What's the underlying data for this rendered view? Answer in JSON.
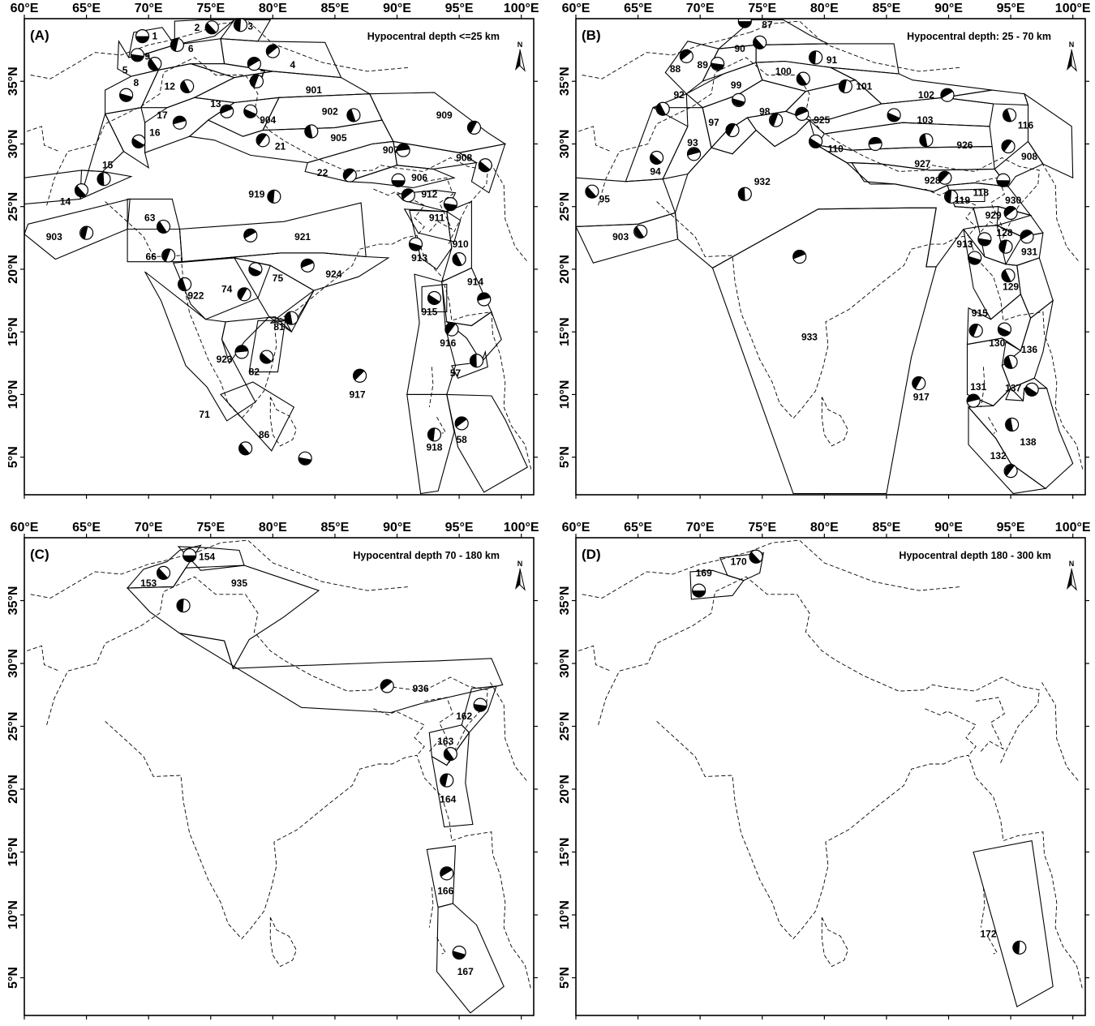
{
  "figure": {
    "panels": [
      {
        "id": "A",
        "label": "(A)",
        "title": "Hypocentral depth <=25 km",
        "north_label": "N",
        "x_ticks": [
          "60°E",
          "65°E",
          "70°E",
          "75°E",
          "80°E",
          "85°E",
          "90°E",
          "95°E",
          "100°E"
        ],
        "y_ticks": [
          "35°N",
          "30°N",
          "25°N",
          "20°N",
          "15°N",
          "10°N",
          "5°N"
        ],
        "zones": [
          {
            "label": "1",
            "lon": 70.5,
            "lat": 38.6,
            "mech_lon": 69.5,
            "mech_lat": 38.6
          },
          {
            "label": "2",
            "lon": 73.9,
            "lat": 39.3,
            "mech_lon": 75.1,
            "mech_lat": 39.3
          },
          {
            "label": "3",
            "lon": 78.2,
            "lat": 39.4,
            "mech_lon": 77.4,
            "mech_lat": 39.5
          },
          {
            "label": "4",
            "lon": 81.6,
            "lat": 36.3,
            "mech_lon": 80.0,
            "mech_lat": 37.4
          },
          {
            "label": "5",
            "lon": 68.1,
            "lat": 35.9,
            "mech_lon": 69.1,
            "mech_lat": 37.1
          },
          {
            "label": "9",
            "lon": 69.9,
            "lat": 37.0,
            "mech_lon": 70.5,
            "mech_lat": 36.4
          },
          {
            "label": "6",
            "lon": 73.4,
            "lat": 37.6,
            "mech_lon": 72.3,
            "mech_lat": 37.9
          },
          {
            "label": "7",
            "lon": 79.2,
            "lat": 35.6,
            "mech_lon": 78.5,
            "mech_lat": 36.4
          },
          {
            "label": "8",
            "lon": 69.0,
            "lat": 34.9,
            "mech_lon": 68.2,
            "mech_lat": 33.9
          },
          {
            "label": "12",
            "lon": 71.7,
            "lat": 34.6,
            "mech_lon": 73.1,
            "mech_lat": 34.6
          },
          {
            "label": "901",
            "lon": 83.3,
            "lat": 34.3,
            "mech_lon": 78.7,
            "mech_lat": 35.0
          },
          {
            "label": "13",
            "lon": 75.4,
            "lat": 33.2,
            "mech_lon": 76.3,
            "mech_lat": 32.6
          },
          {
            "label": "904",
            "lon": 79.6,
            "lat": 31.9,
            "mech_lon": 78.2,
            "mech_lat": 32.6
          },
          {
            "label": "902",
            "lon": 84.6,
            "lat": 32.6,
            "mech_lon": 86.5,
            "mech_lat": 32.3
          },
          {
            "label": "909",
            "lon": 93.8,
            "lat": 32.3,
            "mech_lon": 96.2,
            "mech_lat": 31.3
          },
          {
            "label": "17",
            "lon": 71.1,
            "lat": 32.3,
            "mech_lon": 72.5,
            "mech_lat": 31.7
          },
          {
            "label": "16",
            "lon": 70.5,
            "lat": 30.9,
            "mech_lon": 69.2,
            "mech_lat": 30.2
          },
          {
            "label": "905",
            "lon": 85.3,
            "lat": 30.5,
            "mech_lon": 83.1,
            "mech_lat": 31.0
          },
          {
            "label": "21",
            "lon": 80.6,
            "lat": 29.8,
            "mech_lon": 79.2,
            "mech_lat": 30.3
          },
          {
            "label": "907",
            "lon": 89.5,
            "lat": 29.5,
            "mech_lon": 90.5,
            "mech_lat": 29.5
          },
          {
            "label": "908",
            "lon": 95.4,
            "lat": 28.9,
            "mech_lon": 97.1,
            "mech_lat": 28.3
          },
          {
            "label": "15",
            "lon": 66.7,
            "lat": 28.3,
            "mech_lon": 66.4,
            "mech_lat": 27.2
          },
          {
            "label": "22",
            "lon": 84.0,
            "lat": 27.7,
            "mech_lon": 86.2,
            "mech_lat": 27.5
          },
          {
            "label": "906",
            "lon": 91.8,
            "lat": 27.3,
            "mech_lon": 90.1,
            "mech_lat": 27.1
          },
          {
            "label": "14",
            "lon": 63.3,
            "lat": 25.4,
            "mech_lon": 64.6,
            "mech_lat": 26.3
          },
          {
            "label": "919",
            "lon": 78.7,
            "lat": 26.0,
            "mech_lon": 80.1,
            "mech_lat": 25.8
          },
          {
            "label": "912",
            "lon": 92.6,
            "lat": 26.0,
            "mech_lon": 90.9,
            "mech_lat": 25.9
          },
          {
            "label": "911",
            "lon": 93.2,
            "lat": 24.1,
            "mech_lon": 94.3,
            "mech_lat": 25.2
          },
          {
            "label": "63",
            "lon": 70.1,
            "lat": 24.1,
            "mech_lon": 71.2,
            "mech_lat": 23.4
          },
          {
            "label": "903",
            "lon": 62.4,
            "lat": 22.6,
            "mech_lon": 65.0,
            "mech_lat": 22.9
          },
          {
            "label": "921",
            "lon": 82.4,
            "lat": 22.6,
            "mech_lon": 78.2,
            "mech_lat": 22.7
          },
          {
            "label": "913",
            "lon": 91.8,
            "lat": 20.9,
            "mech_lon": 91.5,
            "mech_lat": 22.0
          },
          {
            "label": "910",
            "lon": 95.1,
            "lat": 22.0,
            "mech_lon": 95.0,
            "mech_lat": 20.8
          },
          {
            "label": "66",
            "lon": 70.2,
            "lat": 21.0,
            "mech_lon": 71.6,
            "mech_lat": 21.1
          },
          {
            "label": "924",
            "lon": 84.9,
            "lat": 19.6,
            "mech_lon": 82.8,
            "mech_lat": 20.3
          },
          {
            "label": "75",
            "lon": 80.4,
            "lat": 19.3,
            "mech_lon": 78.6,
            "mech_lat": 20.0
          },
          {
            "label": "922",
            "lon": 73.8,
            "lat": 17.9,
            "mech_lon": 72.9,
            "mech_lat": 18.8
          },
          {
            "label": "74",
            "lon": 76.3,
            "lat": 18.4,
            "mech_lon": 77.7,
            "mech_lat": 18.0
          },
          {
            "label": "914",
            "lon": 96.3,
            "lat": 19.0,
            "mech_lon": 97.0,
            "mech_lat": 17.6
          },
          {
            "label": "915",
            "lon": 92.6,
            "lat": 16.6,
            "mech_lon": 93.0,
            "mech_lat": 17.7
          },
          {
            "label": "81",
            "lon": 80.5,
            "lat": 15.4,
            "mech_lon": 81.5,
            "mech_lat": 16.1
          },
          {
            "label": "916",
            "lon": 94.1,
            "lat": 14.1,
            "mech_lon": 94.4,
            "mech_lat": 15.2
          },
          {
            "label": "923",
            "lon": 76.1,
            "lat": 12.8,
            "mech_lon": 77.5,
            "mech_lat": 13.4
          },
          {
            "label": "82",
            "lon": 78.5,
            "lat": 11.8,
            "mech_lon": 79.5,
            "mech_lat": 13.0
          },
          {
            "label": "57",
            "lon": 94.7,
            "lat": 11.7,
            "mech_lon": 96.4,
            "mech_lat": 12.7
          },
          {
            "label": "917",
            "lon": 86.8,
            "lat": 10.0,
            "mech_lon": 87.0,
            "mech_lat": 11.5
          },
          {
            "label": "71",
            "lon": 74.5,
            "lat": 8.4,
            "mech_lon": null,
            "mech_lat": null
          },
          {
            "label": "86",
            "lon": 79.3,
            "lat": 6.8,
            "mech_lon": 77.8,
            "mech_lat": 5.7
          },
          {
            "label": "918",
            "lon": 93.0,
            "lat": 5.8,
            "mech_lon": 93.0,
            "mech_lat": 6.8
          },
          {
            "label": "58",
            "lon": 95.2,
            "lat": 6.4,
            "mech_lon": 95.2,
            "mech_lat": 7.7
          },
          {
            "label": "",
            "lon": null,
            "lat": null,
            "mech_lon": 82.6,
            "mech_lat": 4.9
          }
        ]
      },
      {
        "id": "B",
        "label": "(B)",
        "title": "Hypocentral depth: 25 - 70 km",
        "north_label": "N",
        "x_ticks": [
          "60°E",
          "65°E",
          "70°E",
          "75°E",
          "80°E",
          "85°E",
          "90°E",
          "95°E",
          "100°E"
        ],
        "y_ticks": [
          "35°N",
          "30°N",
          "25°N",
          "20°N",
          "15°N",
          "10°N",
          "5°N"
        ],
        "zones": [
          {
            "label": "87",
            "lon": 75.4,
            "lat": 39.5,
            "mech_lon": 73.6,
            "mech_lat": 39.8
          },
          {
            "label": "90",
            "lon": 73.2,
            "lat": 37.6,
            "mech_lon": 74.8,
            "mech_lat": 38.1
          },
          {
            "label": "91",
            "lon": 80.6,
            "lat": 36.7,
            "mech_lon": 79.3,
            "mech_lat": 36.9
          },
          {
            "label": "88",
            "lon": 68.0,
            "lat": 36.0,
            "mech_lon": 68.9,
            "mech_lat": 37.0
          },
          {
            "label": "89",
            "lon": 70.2,
            "lat": 36.3,
            "mech_lon": 71.4,
            "mech_lat": 36.4
          },
          {
            "label": "100",
            "lon": 76.7,
            "lat": 35.8,
            "mech_lon": 78.3,
            "mech_lat": 35.2
          },
          {
            "label": "101",
            "lon": 83.2,
            "lat": 34.6,
            "mech_lon": 81.7,
            "mech_lat": 34.6
          },
          {
            "label": "102",
            "lon": 88.2,
            "lat": 33.9,
            "mech_lon": 89.9,
            "mech_lat": 33.9
          },
          {
            "label": "99",
            "lon": 72.9,
            "lat": 34.7,
            "mech_lon": 73.1,
            "mech_lat": 33.5
          },
          {
            "label": "92",
            "lon": 68.3,
            "lat": 33.9,
            "mech_lon": 67.0,
            "mech_lat": 32.8
          },
          {
            "label": "98",
            "lon": 75.2,
            "lat": 32.6,
            "mech_lon": 76.1,
            "mech_lat": 31.9
          },
          {
            "label": "925",
            "lon": 79.8,
            "lat": 31.9,
            "mech_lon": 78.2,
            "mech_lat": 32.4
          },
          {
            "label": "103",
            "lon": 88.1,
            "lat": 31.9,
            "mech_lon": 85.6,
            "mech_lat": 32.3
          },
          {
            "label": "116",
            "lon": 96.2,
            "lat": 31.5,
            "mech_lon": 94.9,
            "mech_lat": 32.3
          },
          {
            "label": "97",
            "lon": 71.1,
            "lat": 31.7,
            "mech_lon": 72.6,
            "mech_lat": 31.1
          },
          {
            "label": "93",
            "lon": 69.4,
            "lat": 30.1,
            "mech_lon": 69.5,
            "mech_lat": 29.2
          },
          {
            "label": "110",
            "lon": 80.9,
            "lat": 29.6,
            "mech_lon": 79.3,
            "mech_lat": 30.2
          },
          {
            "label": "926",
            "lon": 91.3,
            "lat": 29.9,
            "mech_lon": 88.2,
            "mech_lat": 30.3
          },
          {
            "label": "908",
            "lon": 96.5,
            "lat": 29.0,
            "mech_lon": 94.8,
            "mech_lat": 29.8
          },
          {
            "label": "927",
            "lon": 87.9,
            "lat": 28.4,
            "mech_lon": 84.1,
            "mech_lat": 30.0
          },
          {
            "label": "94",
            "lon": 66.4,
            "lat": 27.8,
            "mech_lon": 66.5,
            "mech_lat": 28.9
          },
          {
            "label": "932",
            "lon": 75.0,
            "lat": 27.0,
            "mech_lon": 73.6,
            "mech_lat": 26.0
          },
          {
            "label": "928",
            "lon": 88.7,
            "lat": 27.1,
            "mech_lon": 89.7,
            "mech_lat": 27.3
          },
          {
            "label": "118",
            "lon": 92.6,
            "lat": 26.1,
            "mech_lon": 94.4,
            "mech_lat": 27.1
          },
          {
            "label": "95",
            "lon": 62.3,
            "lat": 25.6,
            "mech_lon": 61.3,
            "mech_lat": 26.2
          },
          {
            "label": "119",
            "lon": 91.1,
            "lat": 25.5,
            "mech_lon": 90.2,
            "mech_lat": 25.8
          },
          {
            "label": "930",
            "lon": 95.2,
            "lat": 25.5,
            "mech_lon": 95.0,
            "mech_lat": 24.5
          },
          {
            "label": "929",
            "lon": 93.6,
            "lat": 24.3,
            "mech_lon": 92.9,
            "mech_lat": 22.4
          },
          {
            "label": "903",
            "lon": 63.6,
            "lat": 22.6,
            "mech_lon": 65.2,
            "mech_lat": 23.0
          },
          {
            "label": "128",
            "lon": 94.5,
            "lat": 22.9,
            "mech_lon": 94.6,
            "mech_lat": 21.8
          },
          {
            "label": "931",
            "lon": 96.5,
            "lat": 21.4,
            "mech_lon": 96.3,
            "mech_lat": 22.6
          },
          {
            "label": "913",
            "lon": 91.3,
            "lat": 22.0,
            "mech_lon": 92.1,
            "mech_lat": 20.9
          },
          {
            "label": "129",
            "lon": 95.0,
            "lat": 18.6,
            "mech_lon": 94.8,
            "mech_lat": 19.5
          },
          {
            "label": "915",
            "lon": 92.5,
            "lat": 16.5,
            "mech_lon": 92.2,
            "mech_lat": 15.1
          },
          {
            "label": "933",
            "lon": 78.8,
            "lat": 14.6,
            "mech_lon": 78.0,
            "mech_lat": 21.0
          },
          {
            "label": "130",
            "lon": 93.9,
            "lat": 14.1,
            "mech_lon": 94.5,
            "mech_lat": 15.2
          },
          {
            "label": "136",
            "lon": 96.5,
            "lat": 13.6,
            "mech_lon": 95.0,
            "mech_lat": 12.6
          },
          {
            "label": "917",
            "lon": 87.8,
            "lat": 9.8,
            "mech_lon": 87.6,
            "mech_lat": 10.9
          },
          {
            "label": "131",
            "lon": 92.4,
            "lat": 10.6,
            "mech_lon": 92.0,
            "mech_lat": 9.5
          },
          {
            "label": "137",
            "lon": 95.2,
            "lat": 10.5,
            "mech_lon": 96.7,
            "mech_lat": 10.4
          },
          {
            "label": "138",
            "lon": 96.4,
            "lat": 6.2,
            "mech_lon": 95.1,
            "mech_lat": 7.6
          },
          {
            "label": "132",
            "lon": 94.0,
            "lat": 5.1,
            "mech_lon": 95.0,
            "mech_lat": 3.9
          }
        ]
      },
      {
        "id": "C",
        "label": "(C)",
        "title": "Hypocentral depth 70 - 180 km",
        "north_label": "N",
        "x_ticks": [
          "60°E",
          "65°E",
          "70°E",
          "75°E",
          "80°E",
          "85°E",
          "90°E",
          "95°E",
          "100°E"
        ],
        "y_ticks": [
          "35°N",
          "30°N",
          "25°N",
          "20°N",
          "15°N",
          "10°N",
          "5°N"
        ],
        "zones": [
          {
            "label": "154",
            "lon": 74.7,
            "lat": 38.5,
            "mech_lon": 73.3,
            "mech_lat": 38.6
          },
          {
            "label": "153",
            "lon": 70.0,
            "lat": 36.4,
            "mech_lon": 71.2,
            "mech_lat": 37.2
          },
          {
            "label": "935",
            "lon": 77.3,
            "lat": 36.4,
            "mech_lon": 72.8,
            "mech_lat": 34.6
          },
          {
            "label": "936",
            "lon": 91.9,
            "lat": 28.0,
            "mech_lon": 89.2,
            "mech_lat": 28.2
          },
          {
            "label": "162",
            "lon": 95.4,
            "lat": 25.8,
            "mech_lon": 96.7,
            "mech_lat": 26.7
          },
          {
            "label": "163",
            "lon": 93.9,
            "lat": 23.8,
            "mech_lon": 94.3,
            "mech_lat": 22.8
          },
          {
            "label": "164",
            "lon": 94.1,
            "lat": 19.2,
            "mech_lon": 94.0,
            "mech_lat": 20.7
          },
          {
            "label": "166",
            "lon": 93.9,
            "lat": 11.9,
            "mech_lon": 94.0,
            "mech_lat": 13.3
          },
          {
            "label": "167",
            "lon": 95.5,
            "lat": 5.5,
            "mech_lon": 95.0,
            "mech_lat": 7.0
          }
        ]
      },
      {
        "id": "D",
        "label": "(D)",
        "title": "Hypocentral depth 180 - 300 km",
        "north_label": "N",
        "x_ticks": [
          "60°E",
          "65°E",
          "70°E",
          "75°E",
          "80°E",
          "85°E",
          "90°E",
          "95°E",
          "100°E"
        ],
        "y_ticks": [
          "35°N",
          "30°N",
          "25°N",
          "20°N",
          "15°N",
          "10°N",
          "5°N"
        ],
        "zones": [
          {
            "label": "169",
            "lon": 70.3,
            "lat": 37.2,
            "mech_lon": 69.9,
            "mech_lat": 35.8
          },
          {
            "label": "170",
            "lon": 73.1,
            "lat": 38.1,
            "mech_lon": 74.5,
            "mech_lat": 38.5
          },
          {
            "label": "172",
            "lon": 93.2,
            "lat": 8.5,
            "mech_lon": 95.7,
            "mech_lat": 7.4
          }
        ]
      }
    ]
  }
}
